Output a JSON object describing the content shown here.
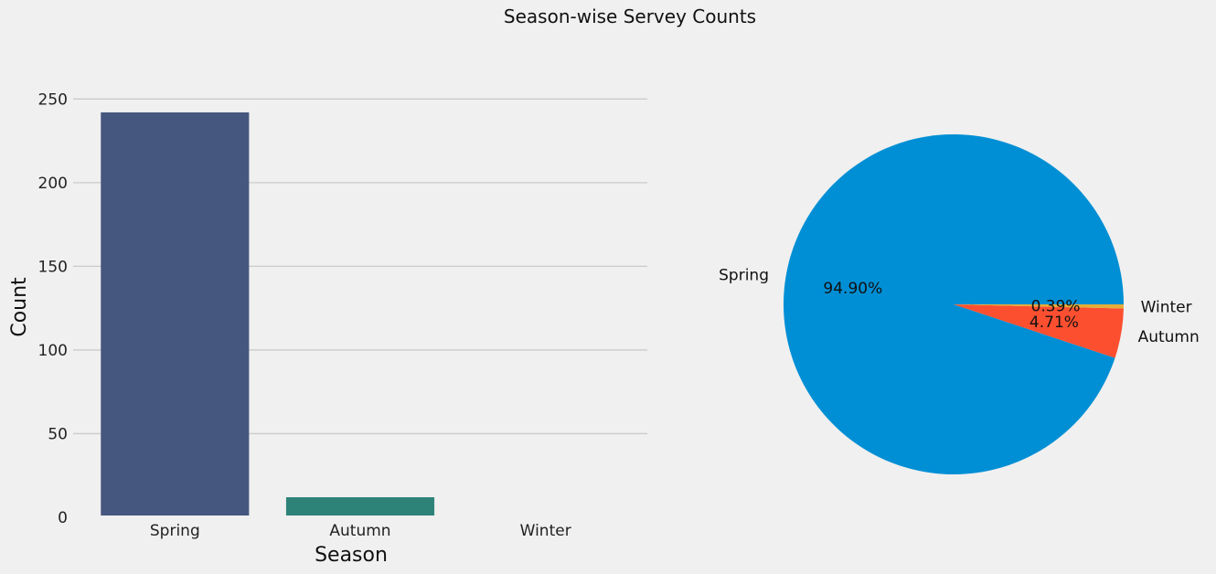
{
  "title": "Season-wise Servey Counts",
  "chart_data": [
    {
      "type": "bar",
      "categories": [
        "Spring",
        "Autumn",
        "Winter"
      ],
      "values": [
        242,
        12,
        1
      ],
      "xlabel": "Season",
      "ylabel": "Count",
      "ylim": [
        0,
        260
      ],
      "yticks": [
        "0",
        "50",
        "100",
        "150",
        "200",
        "250"
      ],
      "grid": "horizontal",
      "colors": [
        "#46577f",
        "#2e8379",
        "#3cb46e"
      ]
    },
    {
      "type": "pie",
      "labels": [
        "Spring",
        "Autumn",
        "Winter"
      ],
      "values": [
        94.9,
        4.71,
        0.39
      ],
      "percent_labels": [
        "94.90%",
        "4.71%",
        "0.39%"
      ],
      "colors": [
        "#008fd5",
        "#fc4f30",
        "#e5ae38"
      ]
    }
  ]
}
